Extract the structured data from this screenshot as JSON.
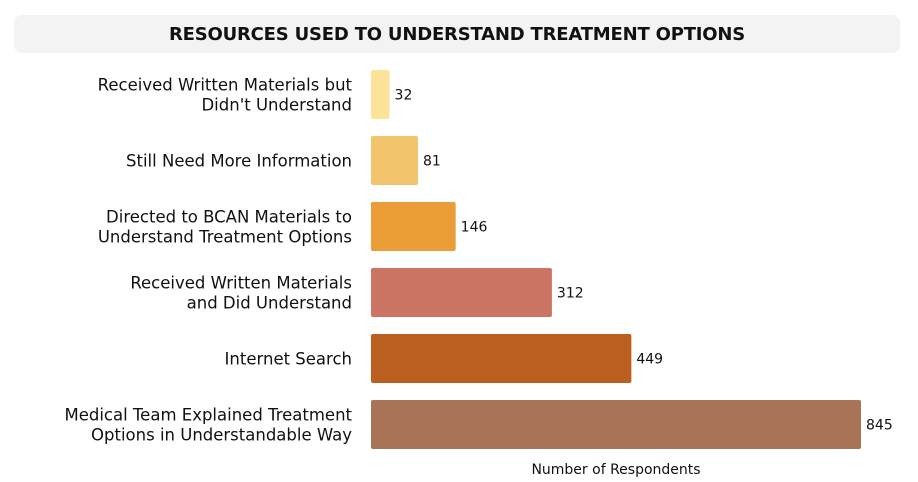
{
  "chart_data": {
    "type": "bar",
    "orientation": "horizontal",
    "title": "RESOURCES USED TO UNDERSTAND TREATMENT OPTIONS",
    "xlabel": "Number of Respondents",
    "ylabel": "",
    "xlim": [
      0,
      845
    ],
    "grid": false,
    "categories": [
      [
        "Received Written Materials but",
        "Didn't Understand"
      ],
      [
        "Still Need More Information"
      ],
      [
        "Directed to BCAN Materials to",
        "Understand Treatment Options"
      ],
      [
        "Received Written Materials",
        "and Did Understand"
      ],
      [
        "Internet Search"
      ],
      [
        "Medical Team Explained Treatment",
        "Options in Understandable Way"
      ]
    ],
    "values": [
      32,
      81,
      146,
      312,
      449,
      845
    ],
    "colors": [
      "#fbe49a",
      "#f2c46c",
      "#eb9e38",
      "#cc7565",
      "#bb5f21",
      "#a97355"
    ]
  }
}
